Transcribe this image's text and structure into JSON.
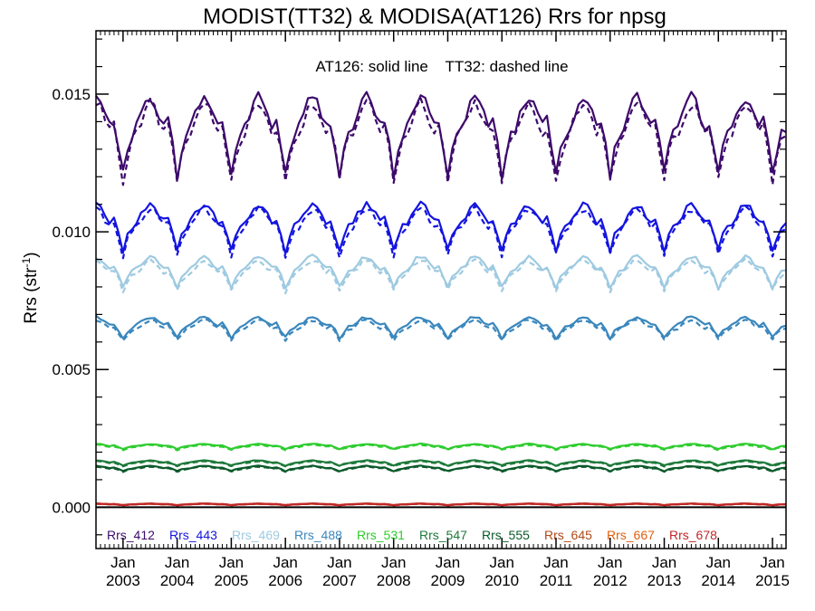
{
  "chart_data": {
    "type": "line",
    "title": "MODIST(TT32) & MODISA(AT126)  Rrs for npsg",
    "annotation": "AT126: solid line    TT32: dashed line",
    "ylabel": "Rrs (str",
    "ylabel_sup": "-1",
    "ylabel_close": ")",
    "ylim": [
      -0.0015,
      0.0173
    ],
    "yticks": [
      0.0,
      0.005,
      0.01,
      0.015
    ],
    "ytick_labels": [
      "0.000",
      "0.005",
      "0.010",
      "0.015"
    ],
    "x_start": "2002-07",
    "x_end": "2015-04",
    "xticks": [
      {
        "month": "Jan",
        "year": "2003"
      },
      {
        "month": "Jan",
        "year": "2004"
      },
      {
        "month": "Jan",
        "year": "2005"
      },
      {
        "month": "Jan",
        "year": "2006"
      },
      {
        "month": "Jan",
        "year": "2007"
      },
      {
        "month": "Jan",
        "year": "2008"
      },
      {
        "month": "Jan",
        "year": "2009"
      },
      {
        "month": "Jan",
        "year": "2010"
      },
      {
        "month": "Jan",
        "year": "2011"
      },
      {
        "month": "Jan",
        "year": "2012"
      },
      {
        "month": "Jan",
        "year": "2013"
      },
      {
        "month": "Jan",
        "year": "2014"
      },
      {
        "month": "Jan",
        "year": "2015"
      }
    ],
    "line_styles": {
      "AT126": "solid",
      "TT32": "dashed"
    },
    "series": [
      {
        "name": "Rrs_412",
        "color": "#3d0a6b",
        "base": 0.0134,
        "amp": 0.0015,
        "min_month_value": 0.0113
      },
      {
        "name": "Rrs_443",
        "color": "#1414e0",
        "base": 0.0101,
        "amp": 0.0009,
        "min_month_value": 0.0088
      },
      {
        "name": "Rrs_469",
        "color": "#9ecae1",
        "base": 0.0085,
        "amp": 0.0006,
        "min_month_value": 0.0076
      },
      {
        "name": "Rrs_488",
        "color": "#3a87bd",
        "base": 0.0065,
        "amp": 0.0004,
        "min_month_value": 0.0059
      },
      {
        "name": "Rrs_531",
        "color": "#2ecc2e",
        "base": 0.0022,
        "amp": 0.0001,
        "min_month_value": 0.002
      },
      {
        "name": "Rrs_547",
        "color": "#1e7a3a",
        "base": 0.0016,
        "amp": 0.0001,
        "min_month_value": 0.0015
      },
      {
        "name": "Rrs_555",
        "color": "#0b5a2a",
        "base": 0.0014,
        "amp": 0.0001,
        "min_month_value": 0.0013
      },
      {
        "name": "Rrs_645",
        "color": "#b04a1a",
        "base": 0.0001,
        "amp": 3e-05,
        "min_month_value": 0.0001
      },
      {
        "name": "Rrs_667",
        "color": "#e06010",
        "base": 0.0001,
        "amp": 3e-05,
        "min_month_value": 0.0001
      },
      {
        "name": "Rrs_678",
        "color": "#c0282a",
        "base": 0.0001,
        "amp": 3e-05,
        "min_month_value": 0.0001
      }
    ]
  }
}
